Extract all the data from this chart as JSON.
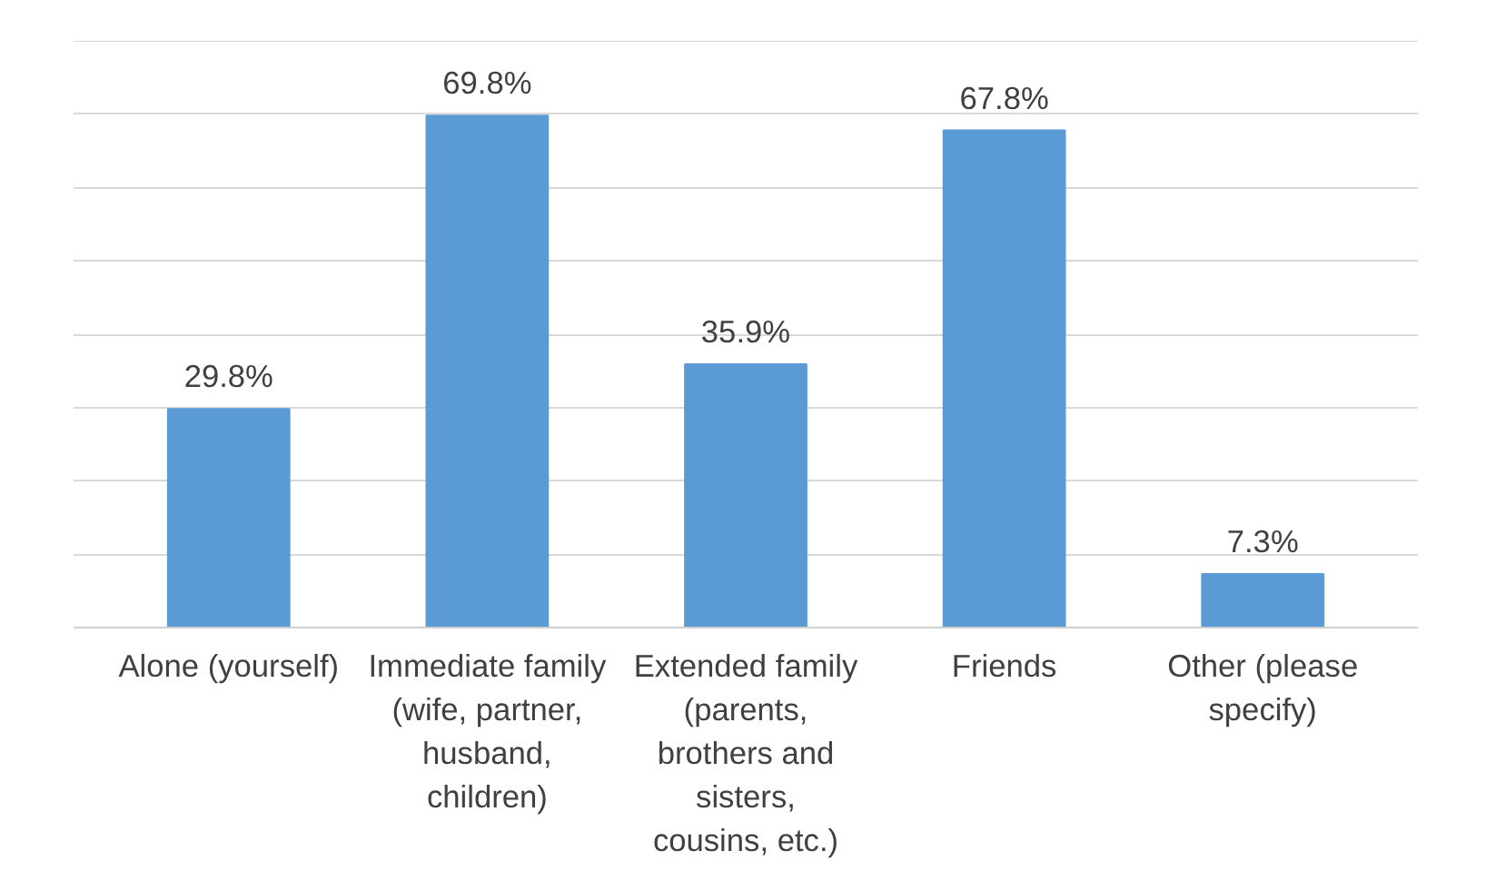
{
  "chart_data": {
    "type": "bar",
    "categories": [
      "Alone (yourself)",
      "Immediate family (wife, partner, husband, children)",
      "Extended family (parents, brothers and sisters, cousins, etc.)",
      "Friends",
      "Other (please specify)"
    ],
    "values": [
      29.8,
      69.8,
      35.9,
      67.8,
      7.3
    ],
    "value_labels": [
      "29.8%",
      "69.8%",
      "35.9%",
      "67.8%",
      "7.3%"
    ],
    "color": "#5b9bd5",
    "ylim": [
      0,
      80
    ],
    "yticks": [
      {
        "value": 0,
        "label": null
      },
      {
        "value": 10,
        "label": null
      },
      {
        "value": 20,
        "label": null
      },
      {
        "value": 30,
        "label": null
      },
      {
        "value": 40,
        "label": null
      },
      {
        "value": 50,
        "label": null
      },
      {
        "value": 60,
        "label": null
      },
      {
        "value": 70,
        "label": null
      },
      {
        "value": 80,
        "label": null
      }
    ],
    "grid": "y",
    "tick_labels": "x"
  }
}
